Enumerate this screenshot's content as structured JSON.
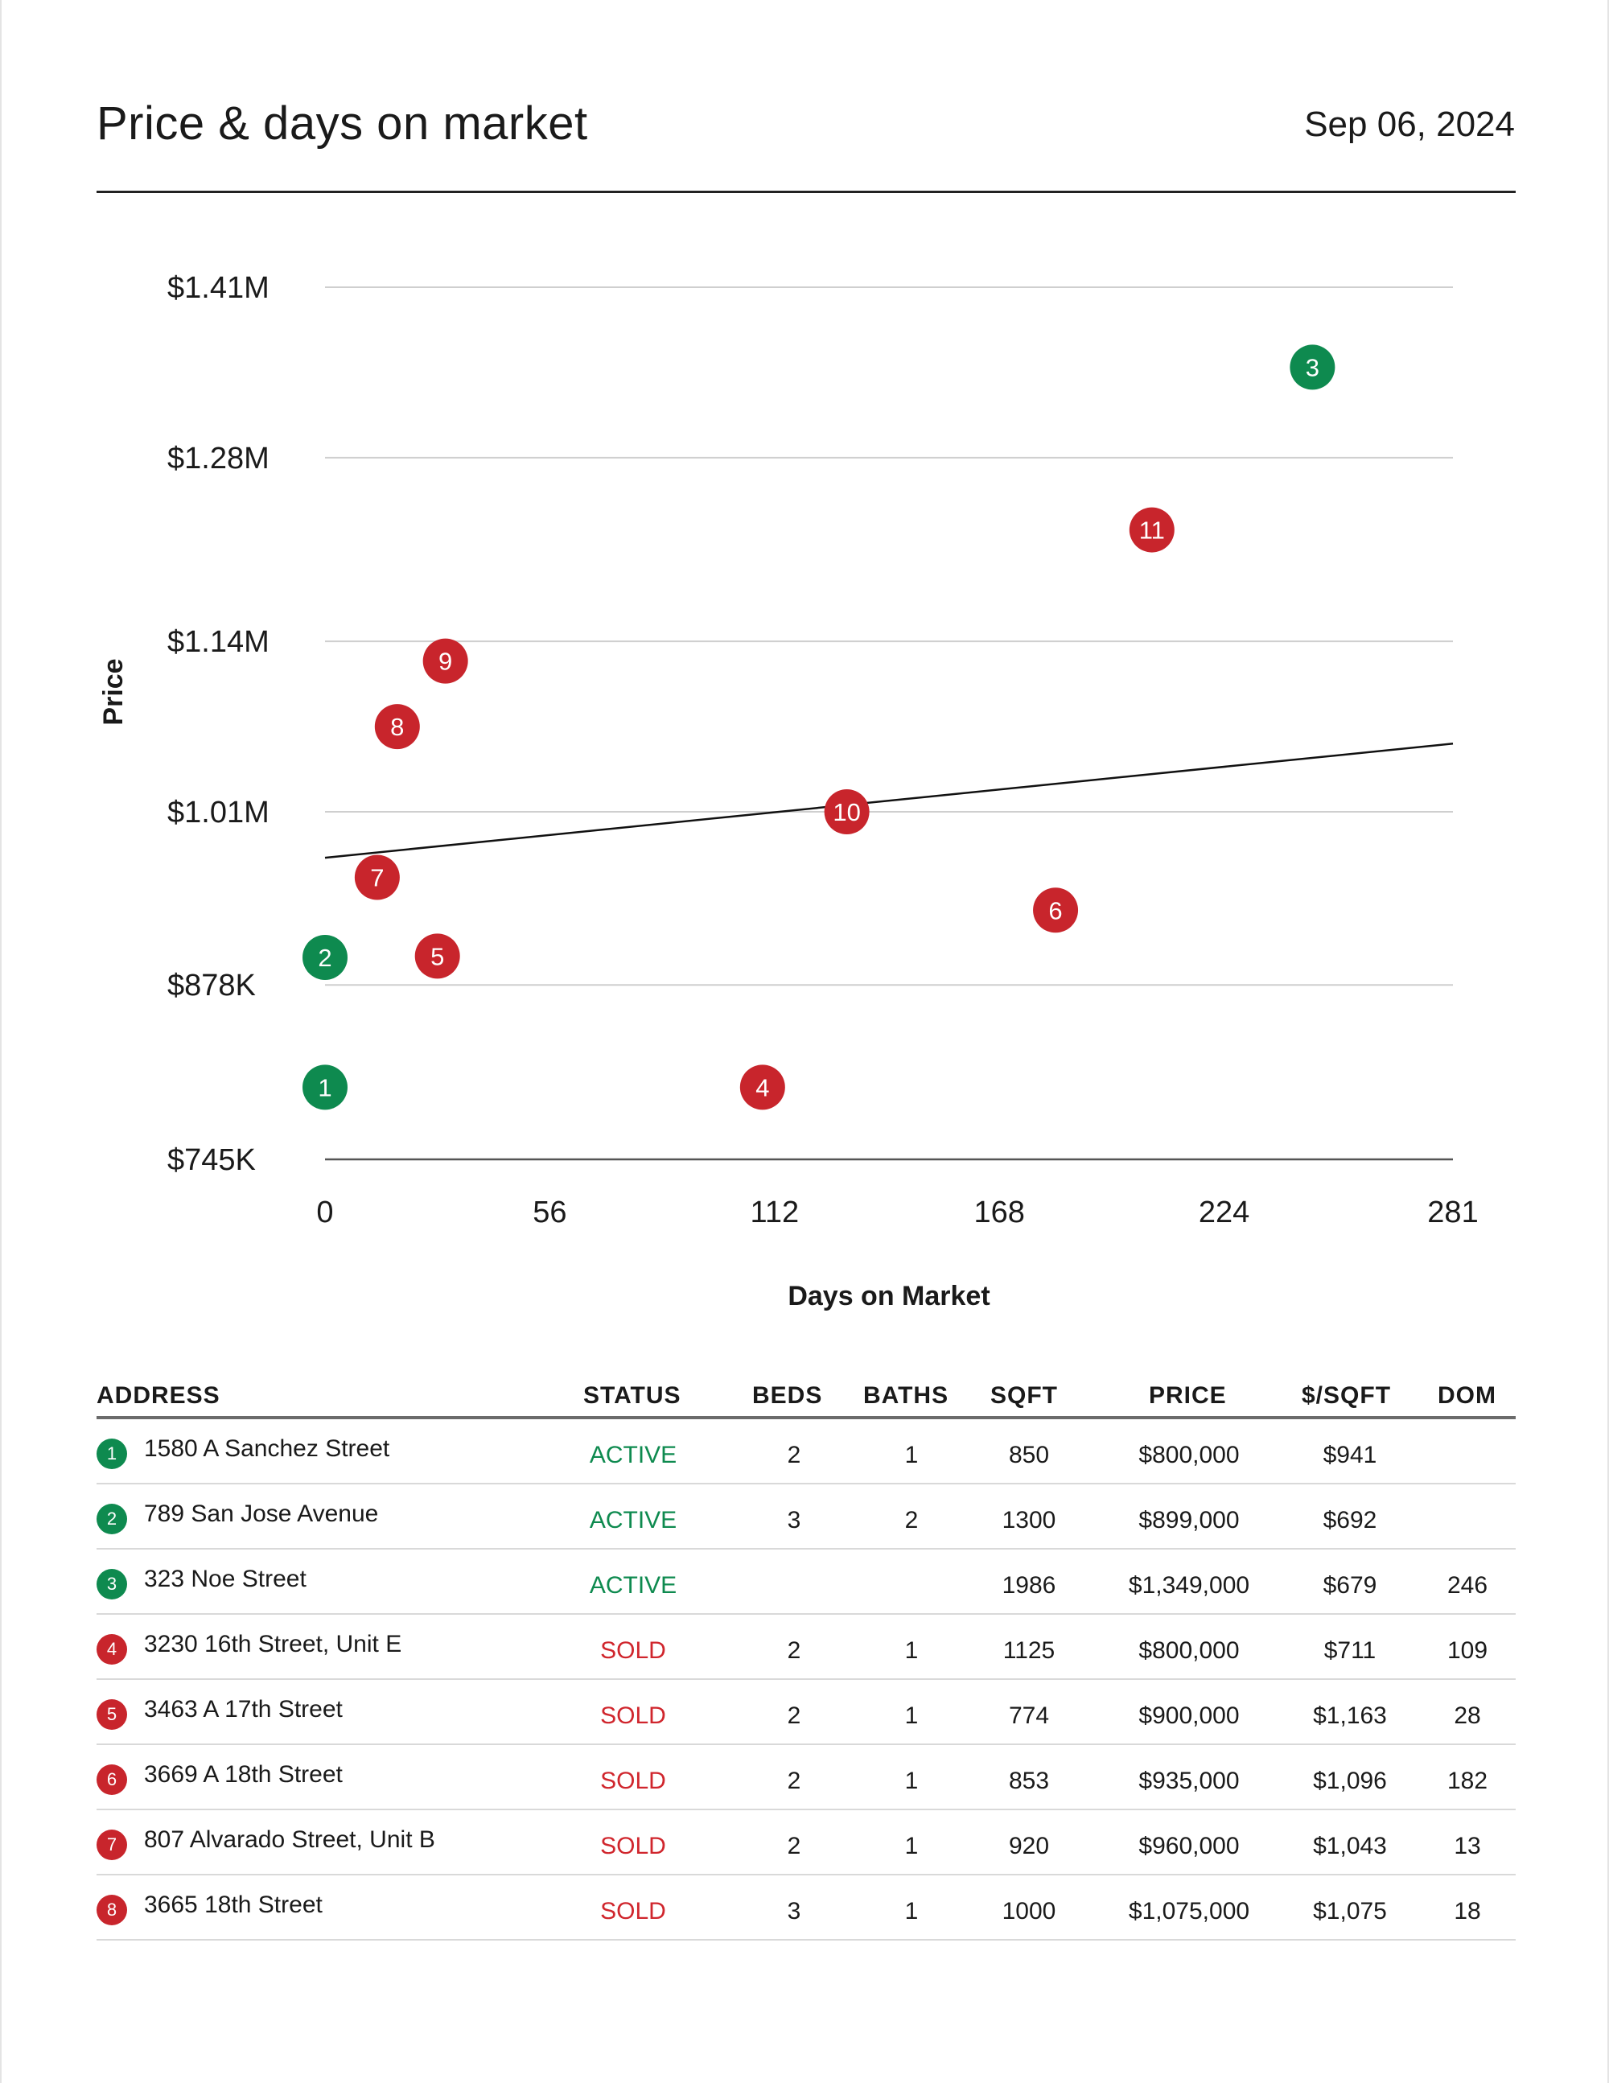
{
  "header": {
    "title": "Price & days on market",
    "date": "Sep 06, 2024"
  },
  "colors": {
    "active": "#0e8a4f",
    "sold": "#c8252c",
    "grid": "#cfcfcf",
    "trend": "#111111"
  },
  "chart_data": {
    "type": "scatter",
    "title": "",
    "xlabel": "Days on Market",
    "ylabel": "Price",
    "xlim": [
      0,
      281
    ],
    "ylim": [
      745000,
      1410000
    ],
    "x_ticks": [
      0,
      56,
      112,
      168,
      224,
      281
    ],
    "x_tick_labels": [
      "0",
      "56",
      "112",
      "168",
      "224",
      "281"
    ],
    "y_ticks": [
      745000,
      878000,
      1010000,
      1140000,
      1280000,
      1410000
    ],
    "y_tick_labels": [
      "$745K",
      "$878K",
      "$1.01M",
      "$1.14M",
      "$1.28M",
      "$1.41M"
    ],
    "grid": true,
    "points": [
      {
        "label": "1",
        "status": "active",
        "x": 0,
        "y": 800000
      },
      {
        "label": "2",
        "status": "active",
        "x": 0,
        "y": 899000
      },
      {
        "label": "3",
        "status": "active",
        "x": 246,
        "y": 1349000
      },
      {
        "label": "4",
        "status": "sold",
        "x": 109,
        "y": 800000
      },
      {
        "label": "5",
        "status": "sold",
        "x": 28,
        "y": 900000
      },
      {
        "label": "6",
        "status": "sold",
        "x": 182,
        "y": 935000
      },
      {
        "label": "7",
        "status": "sold",
        "x": 13,
        "y": 960000
      },
      {
        "label": "8",
        "status": "sold",
        "x": 18,
        "y": 1075000
      },
      {
        "label": "9",
        "status": "sold",
        "x": 30,
        "y": 1125000
      },
      {
        "label": "10",
        "status": "sold",
        "x": 130,
        "y": 1010000
      },
      {
        "label": "11",
        "status": "sold",
        "x": 206,
        "y": 1225000
      }
    ],
    "trendline": {
      "x": [
        0,
        281
      ],
      "y": [
        975000,
        1062000
      ]
    }
  },
  "table": {
    "headers": {
      "address": "ADDRESS",
      "status": "STATUS",
      "beds": "BEDS",
      "baths": "BATHS",
      "sqft": "SQFT",
      "price": "PRICE",
      "ppsf": "$/SQFT",
      "dom": "DOM"
    },
    "rows": [
      {
        "num": "1",
        "status_type": "active",
        "address": "1580 A Sanchez Street",
        "status": "ACTIVE",
        "beds": "2",
        "baths": "1",
        "sqft": "850",
        "price": "$800,000",
        "ppsf": "$941",
        "dom": ""
      },
      {
        "num": "2",
        "status_type": "active",
        "address": "789 San Jose Avenue",
        "status": "ACTIVE",
        "beds": "3",
        "baths": "2",
        "sqft": "1300",
        "price": "$899,000",
        "ppsf": "$692",
        "dom": ""
      },
      {
        "num": "3",
        "status_type": "active",
        "address": "323 Noe Street",
        "status": "ACTIVE",
        "beds": "",
        "baths": "",
        "sqft": "1986",
        "price": "$1,349,000",
        "ppsf": "$679",
        "dom": "246"
      },
      {
        "num": "4",
        "status_type": "sold",
        "address": "3230 16th Street, Unit E",
        "status": "SOLD",
        "beds": "2",
        "baths": "1",
        "sqft": "1125",
        "price": "$800,000",
        "ppsf": "$711",
        "dom": "109"
      },
      {
        "num": "5",
        "status_type": "sold",
        "address": "3463 A 17th Street",
        "status": "SOLD",
        "beds": "2",
        "baths": "1",
        "sqft": "774",
        "price": "$900,000",
        "ppsf": "$1,163",
        "dom": "28"
      },
      {
        "num": "6",
        "status_type": "sold",
        "address": "3669 A 18th Street",
        "status": "SOLD",
        "beds": "2",
        "baths": "1",
        "sqft": "853",
        "price": "$935,000",
        "ppsf": "$1,096",
        "dom": "182"
      },
      {
        "num": "7",
        "status_type": "sold",
        "address": "807 Alvarado Street, Unit B",
        "status": "SOLD",
        "beds": "2",
        "baths": "1",
        "sqft": "920",
        "price": "$960,000",
        "ppsf": "$1,043",
        "dom": "13"
      },
      {
        "num": "8",
        "status_type": "sold",
        "address": "3665 18th Street",
        "status": "SOLD",
        "beds": "3",
        "baths": "1",
        "sqft": "1000",
        "price": "$1,075,000",
        "ppsf": "$1,075",
        "dom": "18"
      }
    ]
  }
}
